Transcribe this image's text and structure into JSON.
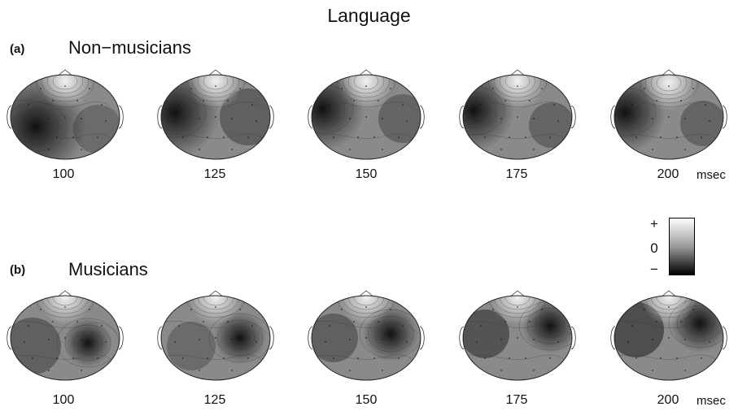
{
  "title": "Language",
  "panels": [
    {
      "id": "a",
      "label": "(a)",
      "group": "Non−musicians",
      "times": [
        "100",
        "125",
        "150",
        "175",
        "200"
      ],
      "unit": "msec"
    },
    {
      "id": "b",
      "label": "(b)",
      "group": "Musicians",
      "times": [
        "100",
        "125",
        "150",
        "175",
        "200"
      ],
      "unit": "msec"
    }
  ],
  "legend": {
    "plus": "+",
    "zero": "0",
    "minus": "−"
  },
  "colors": {
    "dark": "#111111",
    "mid": "#8a8a8a",
    "light": "#f2f2f2"
  }
}
